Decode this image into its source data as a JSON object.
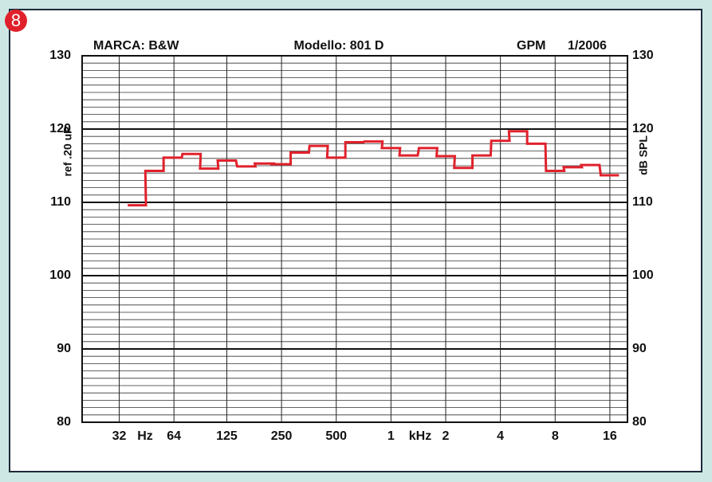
{
  "badge": "8",
  "chart_data": {
    "type": "step",
    "header_left": "MARCA: B&W",
    "header_center": "Modello: 801 D",
    "header_right_a": "GPM",
    "header_right_b": "1/2006",
    "ylabel_left": "ref .20 uP",
    "ylabel_right": "dB SPL",
    "x_unit_low": "Hz",
    "x_unit_high": "kHz",
    "xscale": "log",
    "xlim": [
      20,
      20000
    ],
    "ylim": [
      80,
      130
    ],
    "xticks": [
      32,
      64,
      125,
      250,
      500,
      {
        "value": 1000,
        "label": "1"
      },
      {
        "value": 2000,
        "label": "2"
      },
      {
        "value": 4000,
        "label": "4"
      },
      {
        "value": 8000,
        "label": "8"
      },
      {
        "value": 16000,
        "label": "16"
      }
    ],
    "yticks": [
      80,
      90,
      100,
      110,
      120,
      130
    ],
    "yminorticks": [
      81,
      82,
      83,
      84,
      85,
      86,
      87,
      88,
      89,
      91,
      92,
      93,
      94,
      95,
      96,
      97,
      98,
      99,
      101,
      102,
      103,
      104,
      105,
      106,
      107,
      108,
      109,
      111,
      112,
      113,
      114,
      115,
      116,
      117,
      118,
      119,
      121,
      122,
      123,
      124,
      125,
      126,
      127,
      128,
      129
    ],
    "grid": true,
    "series": [
      {
        "color": "#e0212b",
        "x": [
          40,
          50,
          63,
          80,
          100,
          125,
          160,
          200,
          250,
          315,
          400,
          500,
          630,
          800,
          1000,
          1250,
          1600,
          2000,
          2500,
          3150,
          4000,
          5000,
          6300,
          8000,
          10000,
          12500,
          16000
        ],
        "values": [
          109.6,
          114.3,
          116.1,
          116.6,
          114.6,
          115.7,
          114.9,
          115.3,
          115.2,
          116.8,
          117.7,
          116.1,
          118.2,
          118.3,
          117.4,
          116.4,
          117.4,
          116.3,
          114.7,
          116.4,
          118.4,
          119.7,
          118.0,
          114.3,
          114.8,
          115.1,
          113.7
        ]
      }
    ]
  }
}
